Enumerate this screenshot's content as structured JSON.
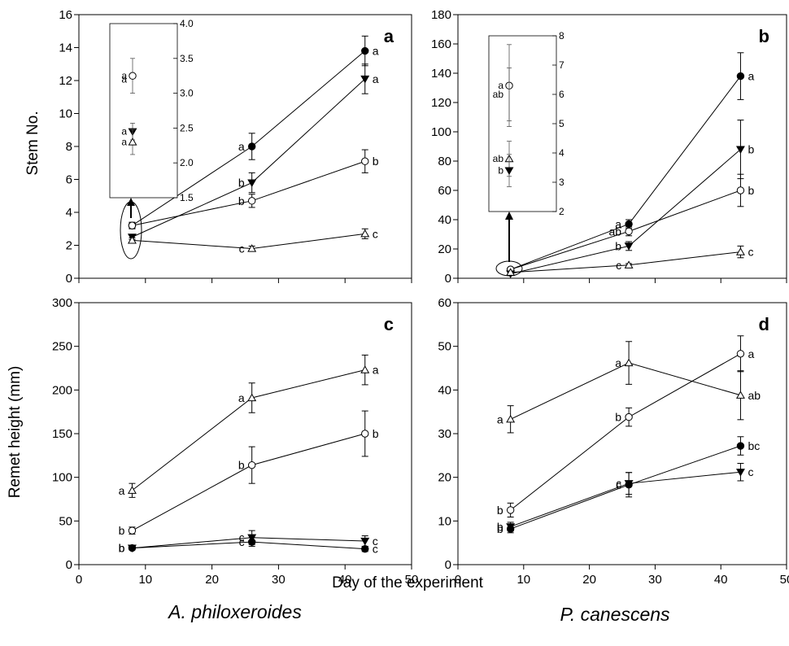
{
  "figure": {
    "y_label_top": "Stem No.",
    "y_label_bottom": "Remet height (mm)",
    "x_label": "Day of the experiment",
    "species_left": "A. philoxeroides",
    "species_right": "P. canescens"
  },
  "chart_data": [
    {
      "type": "line",
      "panel": "a",
      "x": [
        8,
        26,
        43
      ],
      "xlim": [
        0,
        50
      ],
      "ylim": [
        0,
        16
      ],
      "xticks": [
        0,
        10,
        20,
        30,
        40,
        50
      ],
      "yticks": [
        0,
        2,
        4,
        6,
        8,
        10,
        12,
        14,
        16
      ],
      "series": [
        {
          "marker": "filled-circle",
          "values": [
            3.2,
            8.0,
            13.8
          ],
          "errors": [
            0.15,
            0.8,
            0.9
          ],
          "letters": [
            "",
            "a",
            "a"
          ]
        },
        {
          "marker": "filled-triangle-down",
          "values": [
            2.5,
            5.8,
            12.1
          ],
          "errors": [
            0.15,
            0.6,
            0.9
          ],
          "letters": [
            "",
            "b",
            "a"
          ]
        },
        {
          "marker": "open-circle",
          "values": [
            3.2,
            4.7,
            7.1
          ],
          "errors": [
            0.2,
            0.4,
            0.7
          ],
          "letters": [
            "",
            "b",
            "b"
          ]
        },
        {
          "marker": "open-triangle-up",
          "values": [
            2.3,
            1.8,
            2.7
          ],
          "errors": [
            0.15,
            0.15,
            0.3
          ],
          "letters": [
            "",
            "c",
            "c"
          ]
        }
      ],
      "inset": {
        "ylim": [
          1.5,
          4.0
        ],
        "yticks": [
          "1.5",
          "2.0",
          "2.5",
          "3.0",
          "3.5",
          "4.0"
        ],
        "series": [
          {
            "marker": "open-circle",
            "value": 3.25,
            "error": 0.25,
            "letter": "a"
          },
          {
            "marker": "filled-circle",
            "value": 3.2,
            "error": 0,
            "letter": "a"
          },
          {
            "marker": "filled-triangle-down",
            "value": 2.45,
            "error": 0.12,
            "letter": "a"
          },
          {
            "marker": "open-triangle-up",
            "value": 2.3,
            "error": 0.18,
            "letter": "a"
          }
        ]
      }
    },
    {
      "type": "line",
      "panel": "b",
      "x": [
        8,
        26,
        43
      ],
      "xlim": [
        0,
        50
      ],
      "ylim": [
        0,
        180
      ],
      "xticks": [
        0,
        10,
        20,
        30,
        40,
        50
      ],
      "yticks": [
        0,
        20,
        40,
        60,
        80,
        100,
        120,
        140,
        160,
        180
      ],
      "series": [
        {
          "marker": "filled-circle",
          "values": [
            6,
            37,
            138
          ],
          "errors": [
            1,
            3,
            16
          ],
          "letters": [
            "",
            "a",
            "a"
          ]
        },
        {
          "marker": "filled-triangle-down",
          "values": [
            3,
            22,
            88
          ],
          "errors": [
            1,
            3,
            20
          ],
          "letters": [
            "",
            "b",
            "b"
          ]
        },
        {
          "marker": "open-circle",
          "values": [
            6,
            32,
            60
          ],
          "errors": [
            1,
            3,
            11
          ],
          "letters": [
            "",
            "ab",
            "b"
          ]
        },
        {
          "marker": "open-triangle-up",
          "values": [
            4,
            9,
            18
          ],
          "errors": [
            1,
            1,
            4
          ],
          "letters": [
            "",
            "c",
            "c"
          ]
        }
      ],
      "inset": {
        "ylim": [
          2,
          8
        ],
        "yticks": [
          "2",
          "3",
          "4",
          "5",
          "6",
          "7",
          "8"
        ],
        "series": [
          {
            "marker": "open-circle",
            "value": 6.3,
            "error": 1.4,
            "letter": "a"
          },
          {
            "marker": "filled-circle",
            "value": 6.0,
            "error": 0.9,
            "letter": "ab"
          },
          {
            "marker": "open-triangle-up",
            "value": 3.8,
            "error": 0.6,
            "letter": "ab"
          },
          {
            "marker": "filled-triangle-down",
            "value": 3.4,
            "error": 0.55,
            "letter": "b"
          }
        ]
      }
    },
    {
      "type": "line",
      "panel": "c",
      "x": [
        8,
        26,
        43
      ],
      "xlim": [
        0,
        50
      ],
      "ylim": [
        0,
        300
      ],
      "xticks": [
        0,
        10,
        20,
        30,
        40,
        50
      ],
      "yticks": [
        0,
        50,
        100,
        150,
        200,
        250,
        300
      ],
      "series": [
        {
          "marker": "open-triangle-up",
          "values": [
            85,
            191,
            223
          ],
          "errors": [
            8,
            17,
            17
          ],
          "letters": [
            "a",
            "a",
            "a"
          ]
        },
        {
          "marker": "open-circle",
          "values": [
            39,
            114,
            150
          ],
          "errors": [
            4,
            21,
            26
          ],
          "letters": [
            "b",
            "b",
            "b"
          ]
        },
        {
          "marker": "filled-triangle-down",
          "values": [
            19,
            31,
            27
          ],
          "errors": [
            2,
            8,
            6
          ],
          "letters": [
            "b",
            "c",
            "c"
          ]
        },
        {
          "marker": "filled-circle",
          "values": [
            19,
            26,
            18
          ],
          "errors": [
            2,
            5,
            3
          ],
          "letters": [
            "b",
            "c",
            "c"
          ]
        }
      ]
    },
    {
      "type": "line",
      "panel": "d",
      "x": [
        8,
        26,
        43
      ],
      "xlim": [
        0,
        50
      ],
      "ylim": [
        0,
        60
      ],
      "xticks": [
        0,
        10,
        20,
        30,
        40,
        50
      ],
      "yticks": [
        0,
        10,
        20,
        30,
        40,
        50,
        60
      ],
      "series": [
        {
          "marker": "open-triangle-up",
          "values": [
            33.3,
            46.2,
            38.8
          ],
          "errors": [
            3.1,
            4.9,
            5.6
          ],
          "letters": [
            "a",
            "a",
            "ab"
          ]
        },
        {
          "marker": "open-circle",
          "values": [
            12.5,
            33.8,
            48.3
          ],
          "errors": [
            1.6,
            2.1,
            4.1
          ],
          "letters": [
            "b",
            "b",
            "a"
          ]
        },
        {
          "marker": "filled-circle",
          "values": [
            8.2,
            18.3,
            27.2
          ],
          "errors": [
            0.9,
            2.8,
            2.1
          ],
          "letters": [
            "b",
            "c",
            "bc"
          ]
        },
        {
          "marker": "filled-triangle-down",
          "values": [
            8.7,
            18.6,
            21.2
          ],
          "errors": [
            1.0,
            2.5,
            2.0
          ],
          "letters": [
            "b",
            "c",
            "c"
          ]
        }
      ]
    }
  ]
}
